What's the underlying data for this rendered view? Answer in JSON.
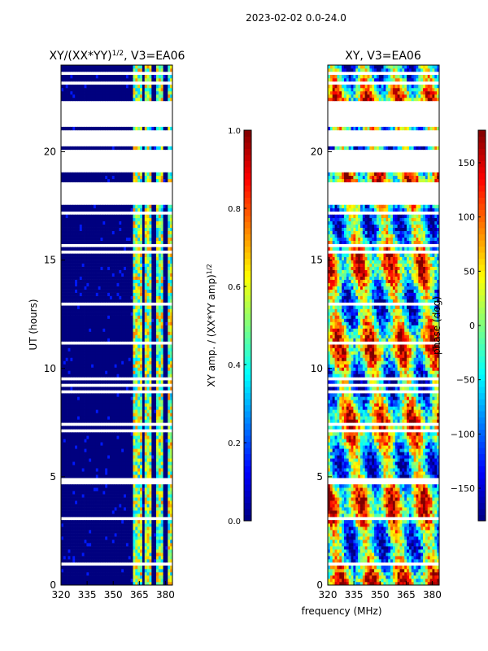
{
  "figure": {
    "suptitle": "2023-02-02 0.0-24.0",
    "xlabel": "frequency (MHz)"
  },
  "colors": {
    "jet": [
      "#00007f",
      "#0000ff",
      "#007fff",
      "#00ffff",
      "#7fff7f",
      "#ffff00",
      "#ff7f00",
      "#ff0000",
      "#7f0000"
    ],
    "gap": "#ffffff",
    "axis": "#000000"
  },
  "chart_data": [
    {
      "type": "heatmap",
      "title_base": "XY/(XX*YY)",
      "title_sup": "1/2",
      "title_tail": ", V3=EA06",
      "xlabel": "",
      "ylabel": "UT (hours)",
      "xlim": [
        320,
        384
      ],
      "ylim": [
        0,
        24
      ],
      "xticks": [
        320,
        335,
        350,
        365,
        380
      ],
      "yticks": [
        0,
        5,
        10,
        15,
        20
      ],
      "colorbar": {
        "label_base": "XY amp. / (XX*YY amp)",
        "label_sup": "1/2",
        "range": [
          0.0,
          1.0
        ],
        "ticks": [
          0.0,
          0.2,
          0.4,
          0.6,
          0.8,
          1.0
        ],
        "tick_labels": [
          "0.0",
          "0.2",
          "0.4",
          "0.6",
          "0.8",
          "1.0"
        ]
      },
      "data_gaps_hours": [
        [
          20.2,
          21.0
        ],
        [
          17.5,
          18.6
        ],
        [
          19.1,
          20.0
        ],
        [
          21.1,
          22.3
        ]
      ],
      "bright_channels_mhz": [
        [
          362,
          366
        ],
        [
          368,
          372
        ],
        [
          375,
          379
        ],
        [
          382,
          384
        ]
      ]
    },
    {
      "type": "heatmap",
      "title": "XY, V3=EA06",
      "xlabel": "",
      "ylabel": "",
      "xlim": [
        320,
        384
      ],
      "ylim": [
        0,
        24
      ],
      "xticks": [
        320,
        335,
        350,
        365,
        380
      ],
      "yticks": [
        0,
        5,
        10,
        15,
        20
      ],
      "colorbar": {
        "label": "phase (deg)",
        "range": [
          -180,
          180
        ],
        "ticks": [
          -150,
          -100,
          -50,
          0,
          50,
          100,
          150
        ],
        "tick_labels": [
          "−150",
          "−100",
          "−50",
          "0",
          "50",
          "100",
          "150"
        ]
      },
      "data_gaps_hours": [
        [
          20.2,
          21.0
        ],
        [
          17.5,
          18.6
        ],
        [
          19.1,
          20.0
        ],
        [
          21.1,
          22.3
        ]
      ]
    }
  ]
}
